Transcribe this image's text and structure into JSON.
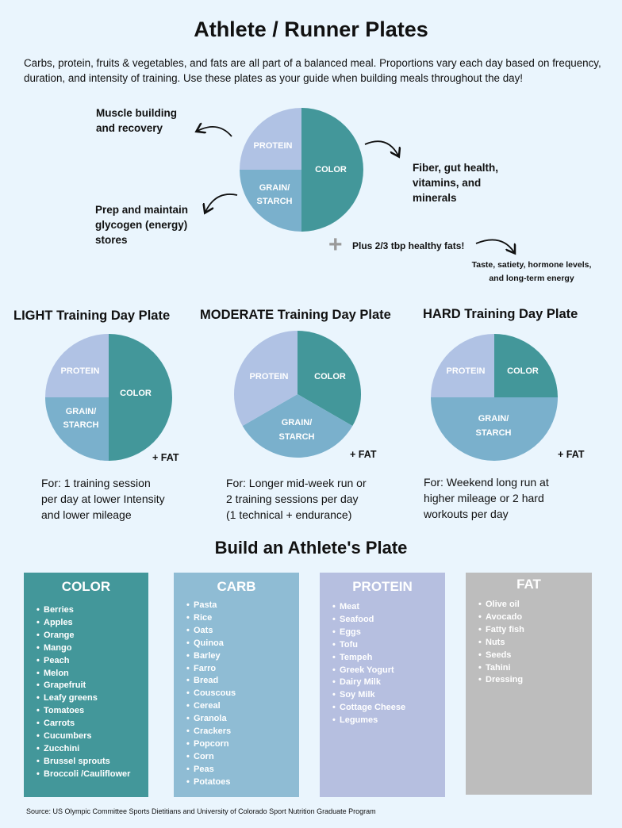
{
  "title": "Athlete / Runner Plates",
  "intro": "Carbs, protein, fruits & vegetables, and fats are all part of a balanced meal. Proportions vary each day based on frequency, duration, and intensity of training. Use these plates as your guide when building meals throughout the day!",
  "colors": {
    "background": "#eaf5fd",
    "color_teal": "#43979a",
    "grain_blue": "#7ab0cc",
    "protein_lavender": "#b0c2e4",
    "carb_card": "#8fbcd4",
    "protein_card": "#b6bfe0",
    "fat_card": "#bdbdbd"
  },
  "main_plate": {
    "labels": {
      "protein": "PROTEIN",
      "grain_line1": "GRAIN/",
      "grain_line2": "STARCH",
      "color": "COLOR"
    },
    "notes": {
      "protein_line1": "Muscle building",
      "protein_line2": "and recovery",
      "color_line1": "Fiber, gut health,",
      "color_line2": "vitamins, and",
      "color_line3": "minerals",
      "grain_line1": "Prep and maintain",
      "grain_line2": "glycogen (energy)",
      "grain_line3": "stores",
      "fats": "Plus 2/3 tbp healthy fats!",
      "fats_line1": "Taste, satiety, hormone levels,",
      "fats_line2": "and long-term energy"
    },
    "plus_icon": "plus-icon",
    "arrow_icon": "curved-arrow-icon"
  },
  "plates": [
    {
      "title": "LIGHT Training Day Plate",
      "fat": "+ FAT",
      "for_line1": "For: 1 training session",
      "for_line2": "per day at lower Intensity",
      "for_line3": "and lower mileage",
      "proportions": {
        "color": 0.5,
        "protein": 0.25,
        "grain": 0.25
      }
    },
    {
      "title": "MODERATE Training Day Plate",
      "fat": "+ FAT",
      "for_line1": "For: Longer mid-week run or",
      "for_line2": "2 training sessions per day",
      "for_line3": "(1 technical + endurance)",
      "proportions": {
        "color": 0.333,
        "protein": 0.333,
        "grain": 0.333
      }
    },
    {
      "title": "HARD Training Day Plate",
      "fat": "+ FAT",
      "for_line1": "For: Weekend long run at",
      "for_line2": "higher mileage or 2 hard",
      "for_line3": "workouts per day",
      "proportions": {
        "color": 0.25,
        "protein": 0.25,
        "grain": 0.5
      }
    }
  ],
  "build_title": "Build an Athlete's Plate",
  "categories": [
    {
      "title": "COLOR",
      "items": [
        "Berries",
        "Apples",
        "Orange",
        "Mango",
        "Peach",
        "Melon",
        "Grapefruit",
        "Leafy greens",
        "Tomatoes",
        "Carrots",
        "Cucumbers",
        "Zucchini",
        "Brussel sprouts",
        "Broccoli /Cauliflower"
      ]
    },
    {
      "title": "CARB",
      "items": [
        "Pasta",
        "Rice",
        "Oats",
        "Quinoa",
        "Barley",
        "Farro",
        "Bread",
        "Couscous",
        "Cereal",
        "Granola",
        "Crackers",
        "Popcorn",
        "Corn",
        "Peas",
        "Potatoes"
      ]
    },
    {
      "title": "PROTEIN",
      "items": [
        "Meat",
        "Seafood",
        "Eggs",
        "Tofu",
        "Tempeh",
        "Greek Yogurt",
        "Dairy Milk",
        "Soy Milk",
        "Cottage Cheese",
        "Legumes"
      ]
    },
    {
      "title": "FAT",
      "items": [
        "Olive oil",
        "Avocado",
        "Fatty fish",
        "Nuts",
        "Seeds",
        "Tahini",
        "Dressing"
      ]
    }
  ],
  "source": "Source: US Olympic Committee Sports Dietitians and University of Colorado Sport Nutrition Graduate Program"
}
